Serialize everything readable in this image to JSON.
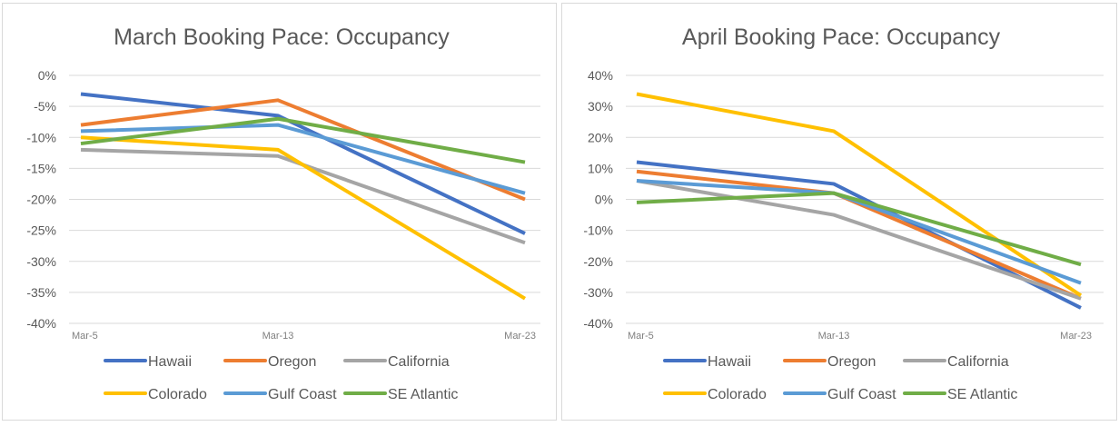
{
  "chart_data": [
    {
      "type": "line",
      "title": "March Booking Pace: Occupancy",
      "categories": [
        "Mar-5",
        "Mar-13",
        "Mar-23"
      ],
      "ylim": [
        -40,
        0
      ],
      "yticks": [
        0,
        -5,
        -10,
        -15,
        -20,
        -25,
        -30,
        -35,
        -40
      ],
      "ytick_format": "percent",
      "grid": true,
      "legend": "bottom",
      "series": [
        {
          "name": "Hawaii",
          "color": "#4472C4",
          "values": [
            -3,
            -6.5,
            -25.5
          ]
        },
        {
          "name": "Oregon",
          "color": "#ED7D31",
          "values": [
            -8,
            -4,
            -20
          ]
        },
        {
          "name": "California",
          "color": "#A5A5A5",
          "values": [
            -12,
            -13,
            -27
          ]
        },
        {
          "name": "Colorado",
          "color": "#FFC000",
          "values": [
            -10,
            -12,
            -36
          ]
        },
        {
          "name": "Gulf Coast",
          "color": "#5B9BD5",
          "values": [
            -9,
            -8,
            -19
          ]
        },
        {
          "name": "SE Atlantic",
          "color": "#70AD47",
          "values": [
            -11,
            -7,
            -14
          ]
        }
      ]
    },
    {
      "type": "line",
      "title": "April Booking Pace: Occupancy",
      "categories": [
        "Mar-5",
        "Mar-13",
        "Mar-23"
      ],
      "ylim": [
        -40,
        40
      ],
      "yticks": [
        40,
        30,
        20,
        10,
        0,
        -10,
        -20,
        -30,
        -40
      ],
      "ytick_format": "percent",
      "grid": true,
      "legend": "bottom",
      "series": [
        {
          "name": "Hawaii",
          "color": "#4472C4",
          "values": [
            12,
            5,
            -35
          ]
        },
        {
          "name": "Oregon",
          "color": "#ED7D31",
          "values": [
            9,
            2,
            -32
          ]
        },
        {
          "name": "California",
          "color": "#A5A5A5",
          "values": [
            6,
            -5,
            -32
          ]
        },
        {
          "name": "Colorado",
          "color": "#FFC000",
          "values": [
            34,
            22,
            -31
          ]
        },
        {
          "name": "Gulf Coast",
          "color": "#5B9BD5",
          "values": [
            6,
            2,
            -27
          ]
        },
        {
          "name": "SE Atlantic",
          "color": "#70AD47",
          "values": [
            -1,
            2,
            -21
          ]
        }
      ]
    }
  ]
}
